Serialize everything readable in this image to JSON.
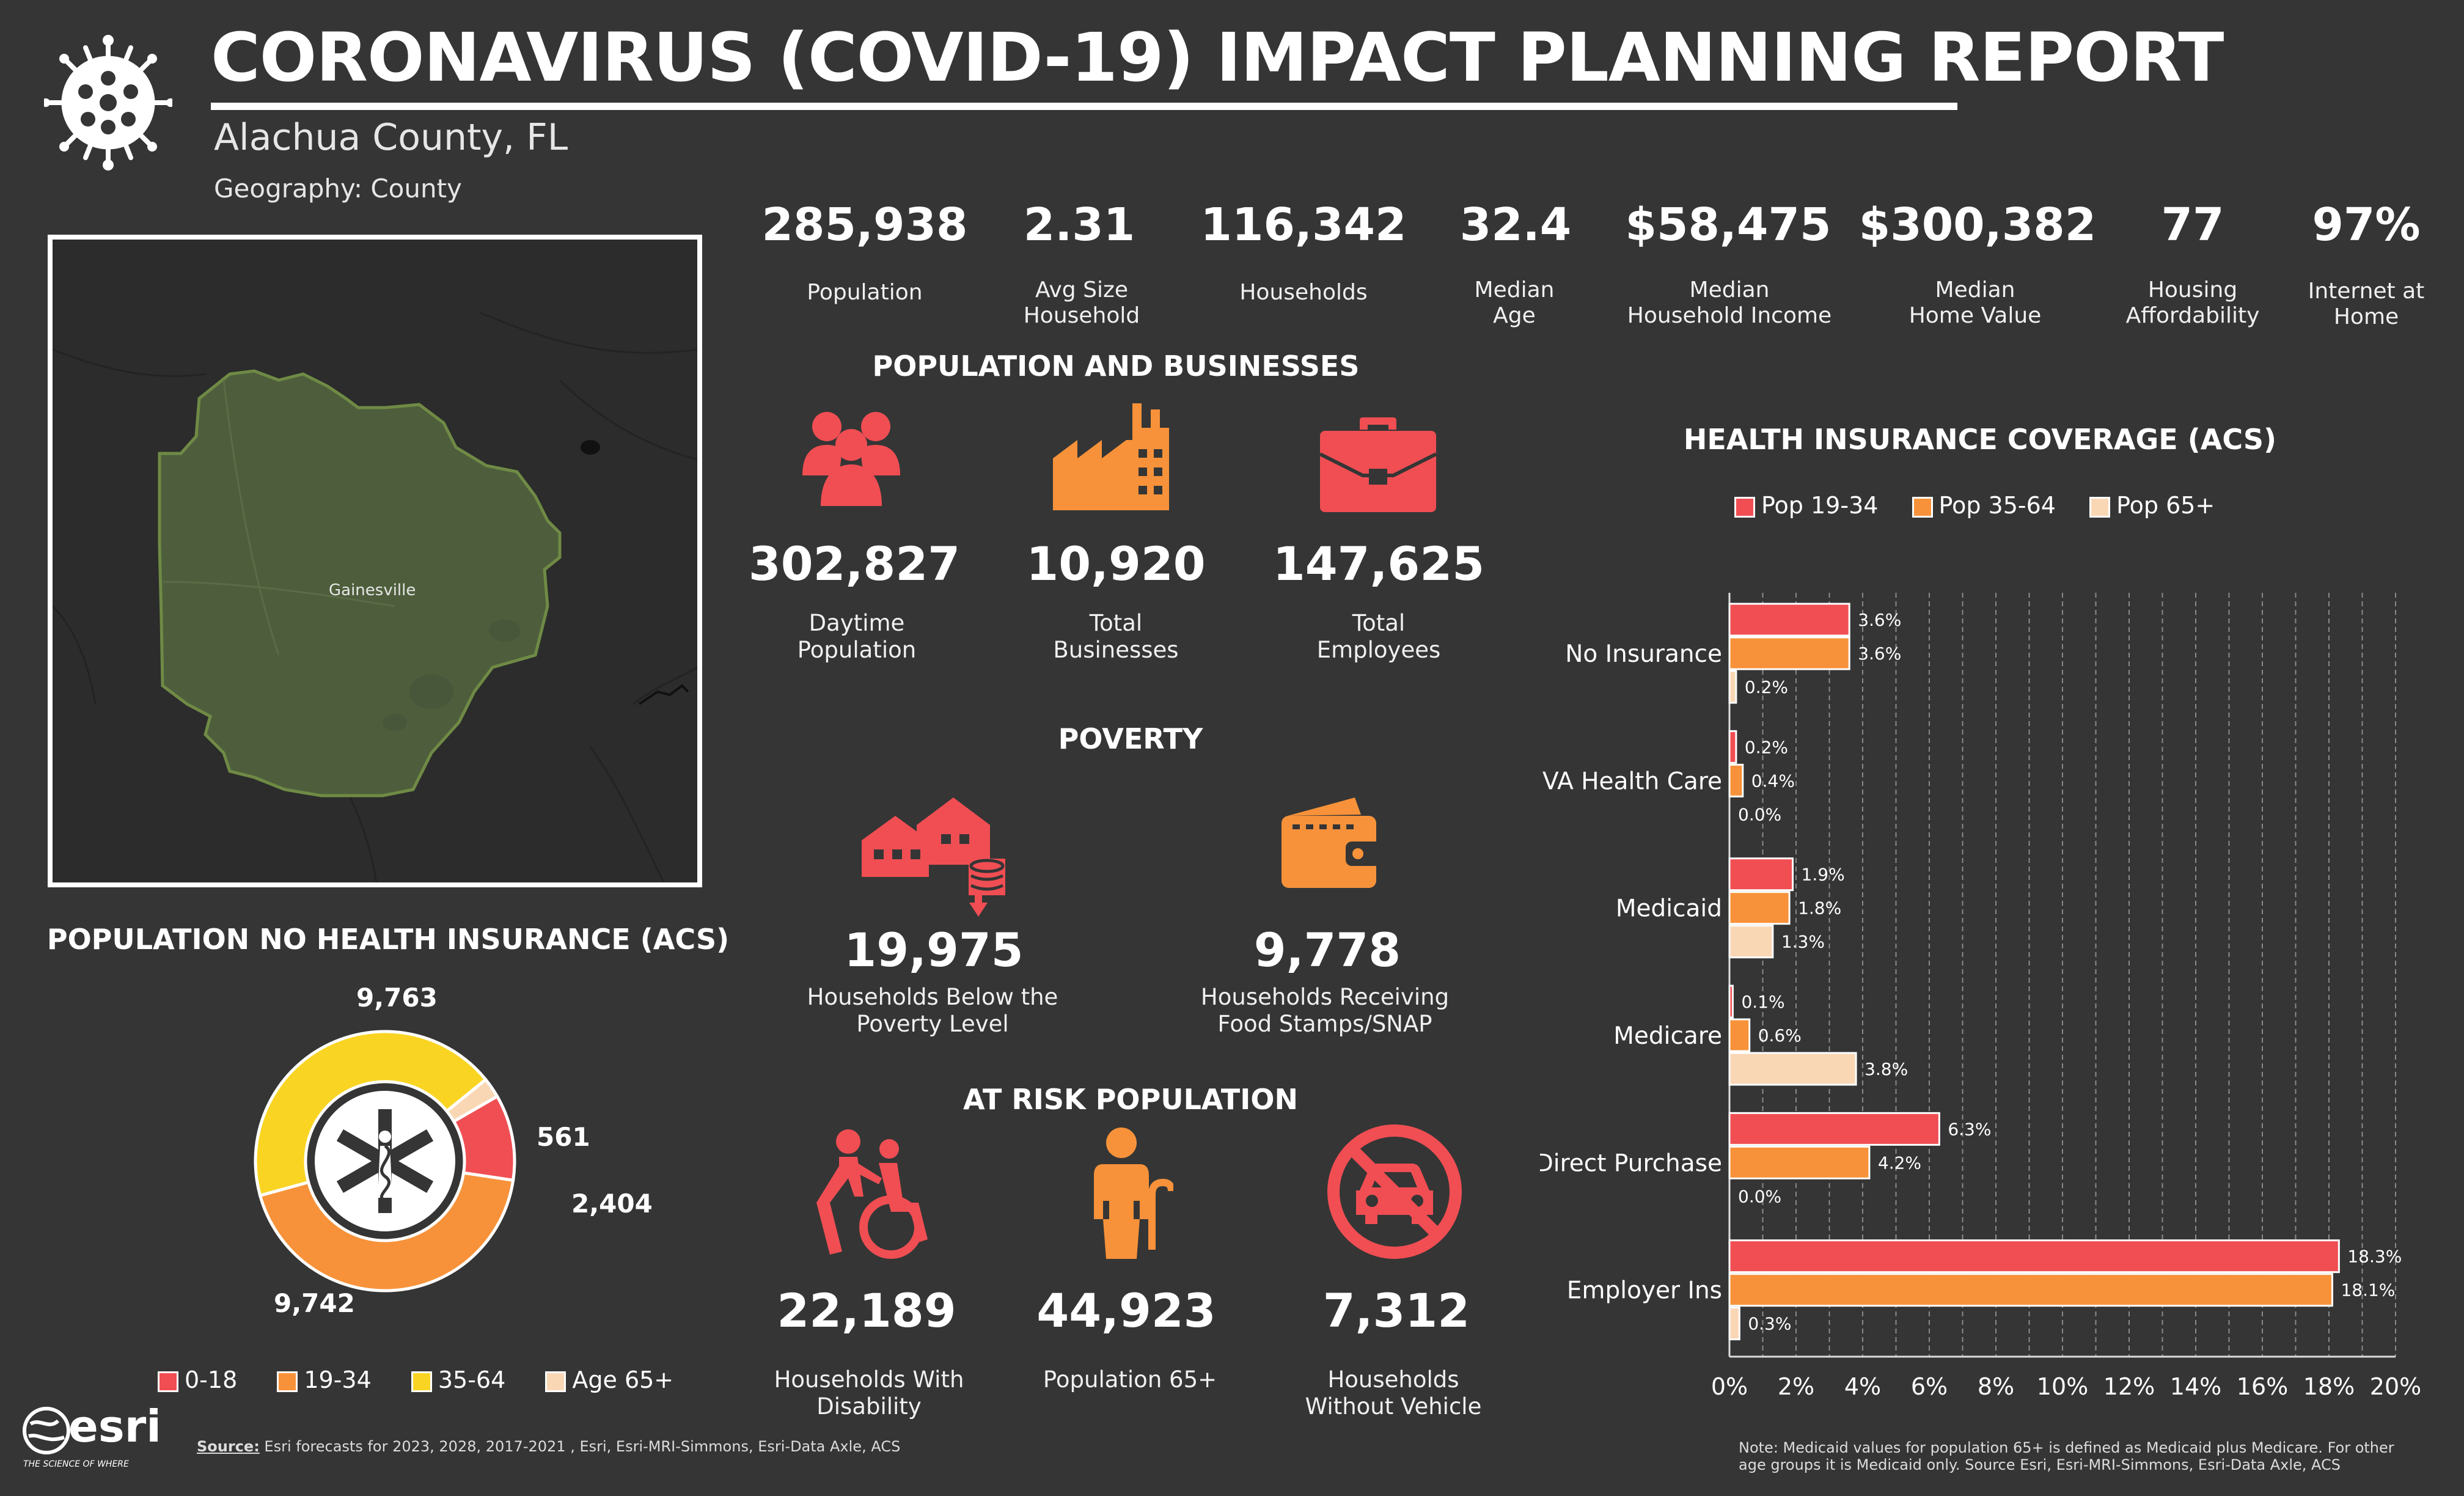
{
  "header": {
    "title": "CORONAVIRUS (COVID-19) IMPACT PLANNING REPORT",
    "subtitle": "Alachua County, FL",
    "geography": "Geography: County"
  },
  "kpis": [
    {
      "value": "285,938",
      "label": "Population"
    },
    {
      "value": "2.31",
      "label": "Avg Size\nHousehold"
    },
    {
      "value": "116,342",
      "label": "Households"
    },
    {
      "value": "32.4",
      "label": "Median\nAge"
    },
    {
      "value": "$58,475",
      "label": "Median\nHousehold Income"
    },
    {
      "value": "$300,382",
      "label": "Median\nHome Value"
    },
    {
      "value": "77",
      "label": "Housing\nAffordability"
    },
    {
      "value": "97%",
      "label": "Internet at\nHome"
    }
  ],
  "map": {
    "city_label": "Gainesville"
  },
  "pop_businesses": {
    "heading": "POPULATION AND BUSINESSES",
    "items": [
      {
        "value": "302,827",
        "label": "Daytime\nPopulation",
        "icon": "people-icon"
      },
      {
        "value": "10,920",
        "label": "Total\nBusinesses",
        "icon": "factory-icon"
      },
      {
        "value": "147,625",
        "label": "Total\nEmployees",
        "icon": "briefcase-icon"
      }
    ]
  },
  "poverty": {
    "heading": "POVERTY",
    "items": [
      {
        "value": "19,975",
        "label": "Households Below the\nPoverty Level",
        "icon": "houses-coins-icon"
      },
      {
        "value": "9,778",
        "label": "Households Receiving\nFood Stamps/SNAP",
        "icon": "wallet-icon"
      }
    ]
  },
  "at_risk": {
    "heading": "AT RISK POPULATION",
    "items": [
      {
        "value": "22,189",
        "label": "Households With\nDisability",
        "icon": "wheelchair-icon"
      },
      {
        "value": "44,923",
        "label": "Population 65+",
        "icon": "elderly-icon"
      },
      {
        "value": "7,312",
        "label": "Households\nWithout Vehicle",
        "icon": "no-car-icon"
      }
    ]
  },
  "donut": {
    "heading": "POPULATION NO HEALTH INSURANCE (ACS)",
    "legend": [
      "0-18",
      "19-34",
      "35-64",
      "Age 65+"
    ],
    "value_labels": [
      "2,404",
      "9,742",
      "9,763",
      "561"
    ],
    "colors": [
      "#f04e53",
      "#f7923a",
      "#f9d423",
      "#fad7b4"
    ]
  },
  "bar_chart_heading": "HEALTH INSURANCE COVERAGE (ACS)",
  "chart_data": [
    {
      "type": "pie",
      "title": "POPULATION NO HEALTH INSURANCE (ACS)",
      "categories": [
        "0-18",
        "19-34",
        "35-64",
        "Age 65+"
      ],
      "values": [
        2404,
        9742,
        9763,
        561
      ]
    },
    {
      "type": "bar",
      "orientation": "horizontal",
      "title": "HEALTH INSURANCE COVERAGE (ACS)",
      "categories": [
        "No Insurance",
        "VA Health Care",
        "Medicaid",
        "Medicare",
        "Direct Purchase",
        "Employer Ins"
      ],
      "series": [
        {
          "name": "Pop 19-34",
          "values": [
            3.6,
            0.2,
            1.9,
            0.1,
            6.3,
            18.3
          ],
          "labels": [
            "3.6%",
            "0.2%",
            "1.9%",
            "0.1%",
            "6.3%",
            "18.3%"
          ],
          "color": "#f04e53"
        },
        {
          "name": "Pop 35-64",
          "values": [
            3.6,
            0.4,
            1.8,
            0.6,
            4.2,
            18.1
          ],
          "labels": [
            "3.6%",
            "0.4%",
            "1.8%",
            "0.6%",
            "4.2%",
            "18.1%"
          ],
          "color": "#f7923a"
        },
        {
          "name": "Pop 65+",
          "values": [
            0.2,
            0.0,
            1.3,
            3.8,
            0.0,
            0.3
          ],
          "labels": [
            "0.2%",
            "0.0%",
            "1.3%",
            "3.8%",
            "0.0%",
            "0.3%"
          ],
          "color": "#fad7b4"
        }
      ],
      "xlim": [
        0,
        20
      ],
      "xticks": [
        "0%",
        "2%",
        "4%",
        "6%",
        "8%",
        "10%",
        "12%",
        "14%",
        "16%",
        "18%",
        "20%"
      ],
      "grid": true,
      "legend": "top"
    }
  ],
  "footer": {
    "logo_text": "esri",
    "logo_tagline": "THE SCIENCE OF WHERE",
    "source_label": "Source:",
    "source_text": " Esri forecasts for  2023, 2028, 2017-2021 , Esri, Esri-MRI-Simmons, Esri-Data Axle, ACS",
    "note": "Note: Medicaid values for population 65+ is defined as Medicaid plus Medicare. For other age groups it is Medicaid only.  Source Esri, Esri-MRI-Simmons, Esri-Data Axle, ACS"
  }
}
